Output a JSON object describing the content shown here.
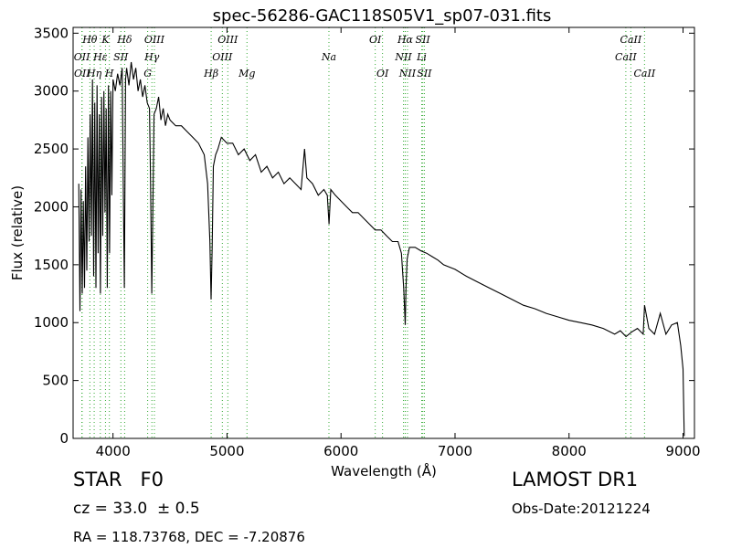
{
  "chart_data": {
    "type": "line",
    "title": "spec-56286-GAC118S05V1_sp07-031.fits",
    "xlabel": "Wavelength (Å)",
    "ylabel": "Flux (relative)",
    "xlim": [
      3650,
      9100
    ],
    "ylim": [
      0,
      3550
    ],
    "xticks": [
      4000,
      5000,
      6000,
      7000,
      8000,
      9000
    ],
    "yticks": [
      0,
      500,
      1000,
      1500,
      2000,
      2500,
      3000,
      3500
    ],
    "grid": false,
    "line_color": "#000000",
    "marker_color": "#33aa33",
    "series": [
      {
        "values_note": "",
        "x": [
          3700,
          3710,
          3720,
          3730,
          3740,
          3750,
          3760,
          3770,
          3780,
          3790,
          3800,
          3810,
          3820,
          3830,
          3840,
          3850,
          3860,
          3870,
          3880,
          3890,
          3900,
          3910,
          3920,
          3930,
          3940,
          3950,
          3960,
          3970,
          3980,
          3990,
          4000,
          4020,
          4040,
          4060,
          4080,
          4090,
          4100,
          4110,
          4120,
          4140,
          4160,
          4180,
          4200,
          4220,
          4240,
          4260,
          4280,
          4300,
          4320,
          4330,
          4340,
          4350,
          4360,
          4380,
          4400,
          4420,
          4440,
          4460,
          4480,
          4500,
          4550,
          4600,
          4650,
          4700,
          4750,
          4800,
          4830,
          4850,
          4860,
          4870,
          4880,
          4900,
          4920,
          4950,
          5000,
          5050,
          5100,
          5150,
          5200,
          5250,
          5300,
          5350,
          5400,
          5450,
          5500,
          5550,
          5600,
          5650,
          5680,
          5700,
          5750,
          5800,
          5850,
          5880,
          5895,
          5910,
          5950,
          6000,
          6050,
          6100,
          6150,
          6200,
          6250,
          6300,
          6350,
          6400,
          6450,
          6500,
          6530,
          6550,
          6563,
          6570,
          6580,
          6600,
          6650,
          6700,
          6750,
          6800,
          6850,
          6900,
          6950,
          7000,
          7100,
          7200,
          7300,
          7400,
          7500,
          7600,
          7700,
          7800,
          7900,
          8000,
          8100,
          8200,
          8300,
          8400,
          8450,
          8500,
          8550,
          8600,
          8650,
          8662,
          8700,
          8750,
          8800,
          8850,
          8900,
          8950,
          8980,
          9000,
          9010
        ],
        "values": [
          2200,
          1100,
          2150,
          1250,
          2050,
          1300,
          2350,
          1450,
          2600,
          1700,
          2800,
          1750,
          3100,
          1400,
          2900,
          1300,
          3050,
          1600,
          2800,
          1250,
          2950,
          1750,
          3000,
          1950,
          2850,
          1300,
          3050,
          1600,
          3000,
          2100,
          3100,
          3000,
          3150,
          3050,
          3200,
          2200,
          1300,
          3100,
          3200,
          3050,
          3250,
          3100,
          3200,
          3000,
          3100,
          2950,
          3050,
          2900,
          2850,
          2200,
          1250,
          2000,
          2800,
          2850,
          2950,
          2750,
          2850,
          2700,
          2800,
          2750,
          2700,
          2700,
          2650,
          2600,
          2550,
          2450,
          2200,
          1700,
          1200,
          1650,
          2350,
          2450,
          2500,
          2600,
          2550,
          2550,
          2450,
          2500,
          2400,
          2450,
          2300,
          2350,
          2250,
          2300,
          2200,
          2250,
          2200,
          2150,
          2500,
          2250,
          2200,
          2100,
          2150,
          2100,
          1850,
          2150,
          2100,
          2050,
          2000,
          1950,
          1950,
          1900,
          1850,
          1800,
          1800,
          1750,
          1700,
          1700,
          1600,
          1300,
          980,
          1300,
          1550,
          1650,
          1650,
          1620,
          1600,
          1570,
          1540,
          1500,
          1480,
          1460,
          1400,
          1350,
          1300,
          1250,
          1200,
          1150,
          1120,
          1080,
          1050,
          1020,
          1000,
          980,
          950,
          900,
          930,
          880,
          920,
          950,
          900,
          1150,
          950,
          900,
          1080,
          900,
          980,
          1000,
          800,
          600,
          20
        ]
      }
    ],
    "spectral_lines": [
      {
        "label": "OII",
        "wavelength": 3727,
        "row": 1
      },
      {
        "label": "OII",
        "wavelength": 3729,
        "row": 2
      },
      {
        "label": "Hθ",
        "wavelength": 3797,
        "row": 0
      },
      {
        "label": "Hη",
        "wavelength": 3835,
        "row": 2
      },
      {
        "label": "Hε",
        "wavelength": 3889,
        "row": 1
      },
      {
        "label": "K",
        "wavelength": 3934,
        "row": 0
      },
      {
        "label": "H",
        "wavelength": 3968,
        "row": 2
      },
      {
        "label": "SII",
        "wavelength": 4069,
        "row": 1
      },
      {
        "label": "Hδ",
        "wavelength": 4102,
        "row": 0
      },
      {
        "label": "G",
        "wavelength": 4304,
        "row": 2
      },
      {
        "label": "Hγ",
        "wavelength": 4341,
        "row": 1
      },
      {
        "label": "OIII",
        "wavelength": 4363,
        "row": 0
      },
      {
        "label": "Hβ",
        "wavelength": 4861,
        "row": 2
      },
      {
        "label": "OIII",
        "wavelength": 4959,
        "row": 1
      },
      {
        "label": "OIII",
        "wavelength": 5007,
        "row": 0
      },
      {
        "label": "Mg",
        "wavelength": 5175,
        "row": 2
      },
      {
        "label": "Na",
        "wavelength": 5894,
        "row": 1
      },
      {
        "label": "OI",
        "wavelength": 6300,
        "row": 0
      },
      {
        "label": "OI",
        "wavelength": 6364,
        "row": 2
      },
      {
        "label": "NII",
        "wavelength": 6548,
        "row": 1
      },
      {
        "label": "Hα",
        "wavelength": 6563,
        "row": 0
      },
      {
        "label": "NII",
        "wavelength": 6583,
        "row": 2
      },
      {
        "label": "SII",
        "wavelength": 6717,
        "row": 0
      },
      {
        "label": "Li",
        "wavelength": 6708,
        "row": 1
      },
      {
        "label": "SII",
        "wavelength": 6731,
        "row": 2
      },
      {
        "label": "CaII",
        "wavelength": 8498,
        "row": 1
      },
      {
        "label": "CaII",
        "wavelength": 8542,
        "row": 0
      },
      {
        "label": "CaII",
        "wavelength": 8662,
        "row": 2
      }
    ]
  },
  "info": {
    "object_class": "STAR   F0",
    "survey": "LAMOST DR1",
    "cz": "cz = 33.0  ± 0.5",
    "obs_date": "Obs-Date:20121224",
    "ra_dec": "RA = 118.73768, DEC = -7.20876"
  }
}
